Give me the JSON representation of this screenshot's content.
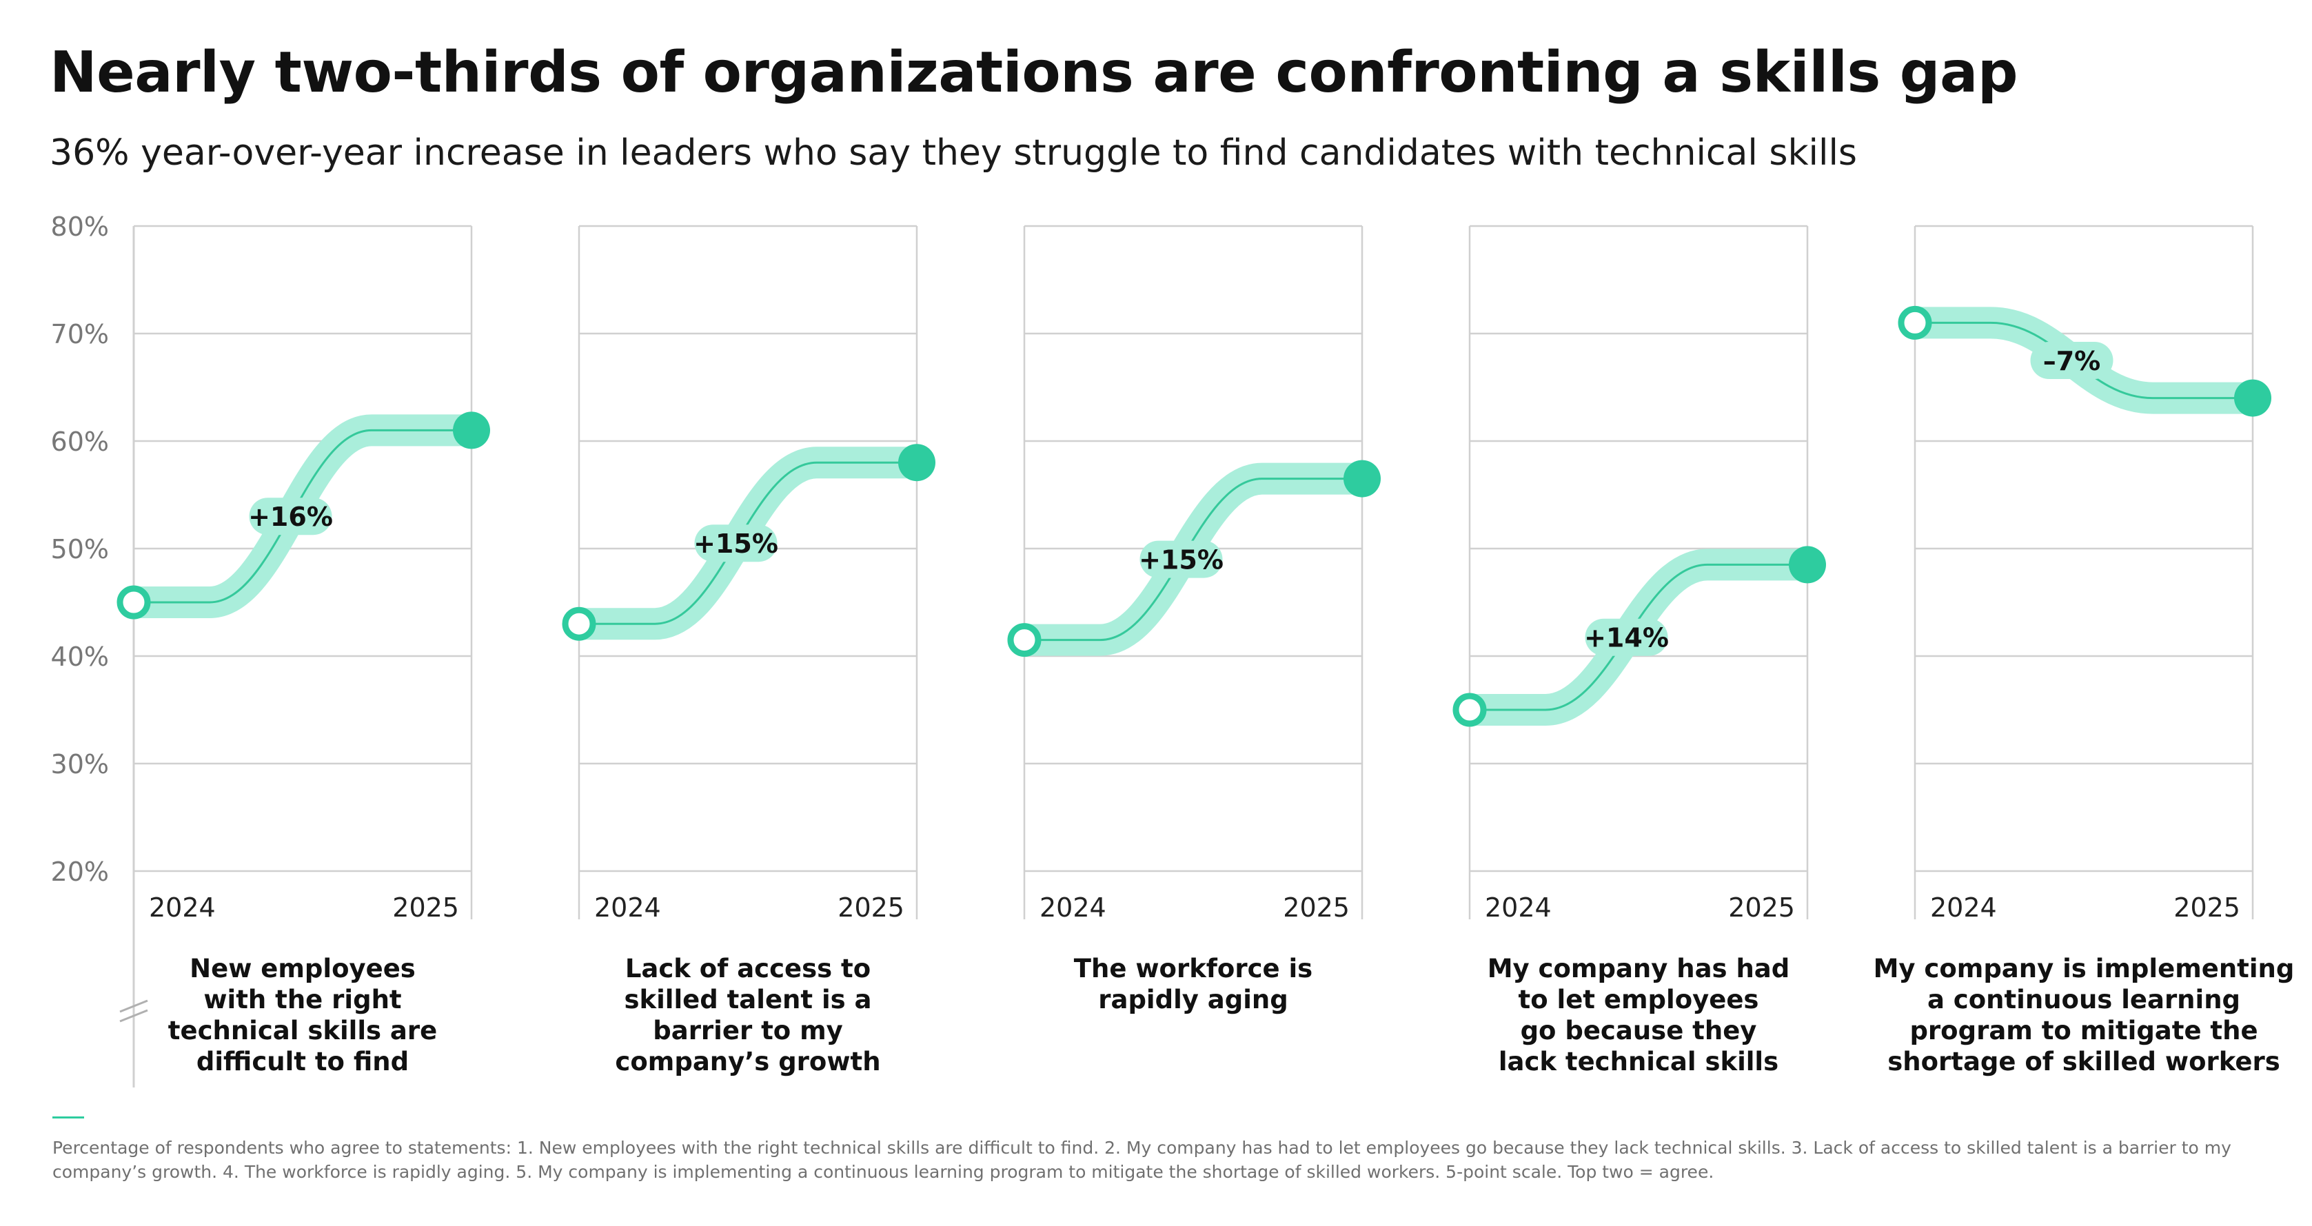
{
  "title": "Nearly two-thirds of organizations are confronting a skills gap",
  "subtitle": "36% year-over-year increase in leaders who say they struggle to find candidates with technical skills",
  "footnote": "Percentage of respondents who agree to statements: 1. New employees with the right technical skills are difficult to find. 2. My company has had to let employees go because they lack technical skills. 3. Lack of access to skilled talent is a barrier to my company’s growth. 4. The workforce is rapidly aging. 5. My company is implementing a continuous learning program to mitigate the shortage of skilled workers. 5-point scale. Top two = agree.",
  "colors": {
    "band": "#aaeedb",
    "line": "#35c99b",
    "marker": "#2ecc9f",
    "grid": "#d0d0d0",
    "axis_text": "#777777"
  },
  "chart_data": {
    "type": "slope",
    "x": [
      "2024",
      "2025"
    ],
    "ylim": [
      20,
      80
    ],
    "yticks": [
      "20%",
      "30%",
      "40%",
      "50%",
      "60%",
      "70%",
      "80%"
    ],
    "yticks_values": [
      20,
      30,
      40,
      50,
      60,
      70,
      80
    ],
    "grid": true,
    "panels": [
      {
        "label_lines": [
          "New employees",
          "with the right",
          "technical skills are",
          "difficult to find"
        ],
        "values": [
          45,
          61
        ],
        "change": "+16%"
      },
      {
        "label_lines": [
          "Lack of access to",
          "skilled talent is a",
          "barrier to my",
          "company’s growth"
        ],
        "values": [
          43,
          58
        ],
        "change": "+15%"
      },
      {
        "label_lines": [
          "The workforce is",
          "rapidly aging"
        ],
        "values": [
          41.5,
          56.5
        ],
        "change": "+15%"
      },
      {
        "label_lines": [
          "My company has had",
          "to let employees",
          "go because they",
          "lack technical skills"
        ],
        "values": [
          35,
          48.5
        ],
        "change": "+14%"
      },
      {
        "label_lines": [
          "My company is implementing",
          "a continuous learning",
          "program to mitigate the",
          "shortage of skilled workers"
        ],
        "values": [
          71,
          64
        ],
        "change": "–7%"
      }
    ]
  }
}
